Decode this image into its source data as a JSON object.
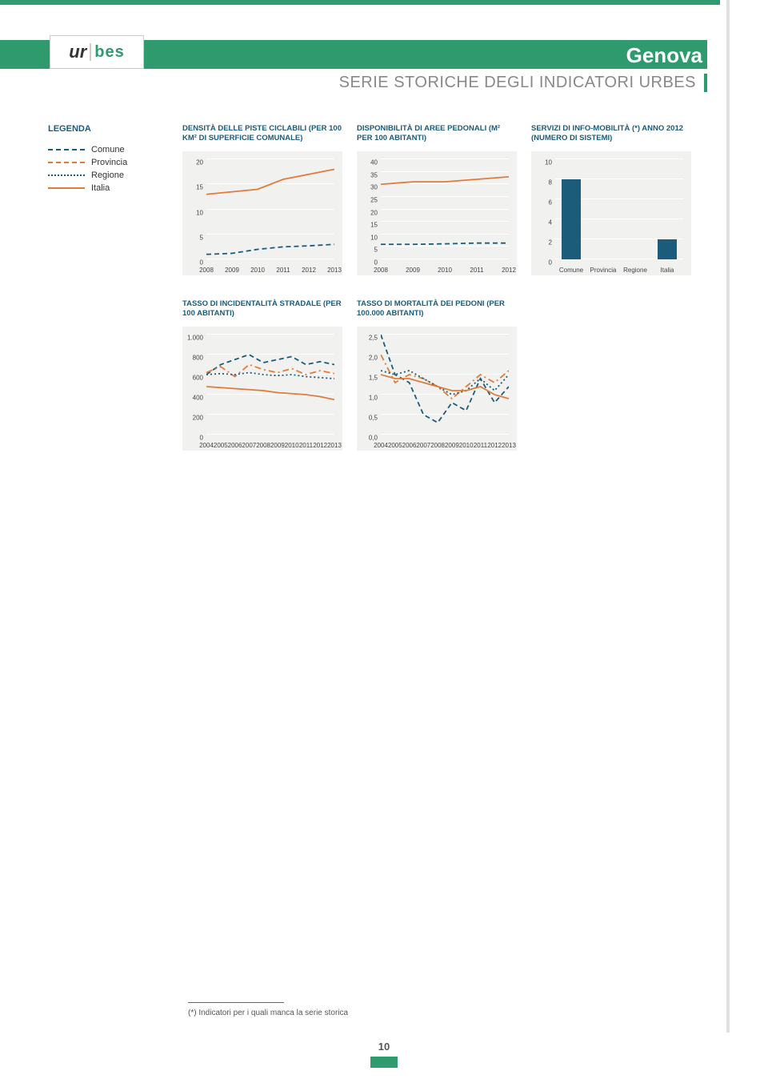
{
  "header": {
    "city": "Genova",
    "subtitle": "SERIE STORICHE DEGLI INDICATORI URBES",
    "logo_ur": "ur",
    "logo_bes": "bes"
  },
  "legend": {
    "title": "LEGENDA",
    "items": [
      {
        "label": "Comune",
        "color": "#1a5c7a",
        "dash": "dashed"
      },
      {
        "label": "Provincia",
        "color": "#e07b3c",
        "dash": "dashdot"
      },
      {
        "label": "Regione",
        "color": "#1a5c7a",
        "dash": "dotted"
      },
      {
        "label": "Italia",
        "color": "#e07b3c",
        "dash": "solid"
      }
    ]
  },
  "charts": {
    "c1": {
      "title": "DENSITÀ DELLE PISTE CICLABILI (PER 100 KM² DI SUPERFICIE COMUNALE)",
      "type": "line",
      "ymin": 0,
      "ymax": 20,
      "ystep": 5,
      "xlabels": [
        "2008",
        "2009",
        "2010",
        "2011",
        "2012",
        "2013"
      ],
      "series": [
        {
          "color": "#e07b3c",
          "dash": "solid",
          "vals": [
            13,
            13.5,
            14,
            16,
            17,
            18
          ]
        },
        {
          "color": "#1a5c7a",
          "dash": "dashed",
          "vals": [
            1,
            1.2,
            2,
            2.5,
            2.7,
            3
          ]
        }
      ]
    },
    "c2": {
      "title": "DISPONIBILITÀ DI AREE PEDONALI (M² PER 100 ABITANTI)",
      "type": "line",
      "ymin": 0,
      "ymax": 40,
      "ystep": 5,
      "xlabels": [
        "2008",
        "2009",
        "2010",
        "2011",
        "2012"
      ],
      "series": [
        {
          "color": "#e07b3c",
          "dash": "solid",
          "vals": [
            30,
            31,
            31,
            32,
            33
          ]
        },
        {
          "color": "#1a5c7a",
          "dash": "dashed",
          "vals": [
            6,
            6,
            6.2,
            6.5,
            6.5
          ]
        }
      ]
    },
    "c3": {
      "title": "SERVIZI DI INFO-MOBILITÀ (*) ANNO 2012 (NUMERO DI SISTEMI)",
      "type": "bar",
      "ymin": 0,
      "ymax": 10,
      "ystep": 2,
      "xlabels": [
        "Comune",
        "Provincia",
        "Regione",
        "Italia"
      ],
      "bar_color": "#1a5c7a",
      "vals": [
        8,
        null,
        null,
        2
      ]
    },
    "c4": {
      "title": "TASSO DI INCIDENTALITÀ STRADALE (PER 100 ABITANTI)",
      "type": "line",
      "ymin": 0,
      "ymax": 1000,
      "ystep": 200,
      "ylabels": [
        "0",
        "200",
        "400",
        "600",
        "800",
        "1.000"
      ],
      "xlabels": [
        "2004",
        "2005",
        "2006",
        "2007",
        "2008",
        "2009",
        "2010",
        "2011",
        "2012",
        "2013"
      ],
      "series": [
        {
          "color": "#1a5c7a",
          "dash": "dashed",
          "vals": [
            600,
            700,
            750,
            800,
            720,
            750,
            780,
            700,
            730,
            700
          ]
        },
        {
          "color": "#e07b3c",
          "dash": "dashdot",
          "vals": [
            620,
            680,
            580,
            700,
            650,
            620,
            660,
            600,
            640,
            610
          ]
        },
        {
          "color": "#1a5c7a",
          "dash": "dotted",
          "vals": [
            600,
            610,
            600,
            620,
            600,
            590,
            600,
            580,
            570,
            560
          ]
        },
        {
          "color": "#e07b3c",
          "dash": "solid",
          "vals": [
            480,
            470,
            460,
            450,
            440,
            420,
            410,
            400,
            380,
            350
          ]
        }
      ]
    },
    "c5": {
      "title": "TASSO DI MORTALITÀ DEI PEDONI (PER 100.000 ABITANTI)",
      "type": "line",
      "ymin": 0,
      "ymax": 2.5,
      "ystep": 0.5,
      "ylabels": [
        "0,0",
        "0,5",
        "1,0",
        "1,5",
        "2,0",
        "2,5"
      ],
      "xlabels": [
        "2004",
        "2005",
        "2006",
        "2007",
        "2008",
        "2009",
        "2010",
        "2011",
        "2012",
        "2013"
      ],
      "series": [
        {
          "color": "#1a5c7a",
          "dash": "dashed",
          "vals": [
            2.5,
            1.5,
            1.3,
            0.5,
            0.3,
            0.8,
            0.6,
            1.4,
            0.8,
            1.2
          ]
        },
        {
          "color": "#e07b3c",
          "dash": "dashdot",
          "vals": [
            2.0,
            1.3,
            1.5,
            1.4,
            1.2,
            0.9,
            1.2,
            1.5,
            1.3,
            1.6
          ]
        },
        {
          "color": "#1a5c7a",
          "dash": "dotted",
          "vals": [
            1.6,
            1.5,
            1.6,
            1.4,
            1.2,
            1.0,
            1.1,
            1.4,
            1.1,
            1.5
          ]
        },
        {
          "color": "#e07b3c",
          "dash": "solid",
          "vals": [
            1.5,
            1.4,
            1.4,
            1.3,
            1.2,
            1.1,
            1.1,
            1.2,
            1.0,
            0.9
          ]
        }
      ]
    }
  },
  "footnote": "(*) Indicatori per i quali manca la serie storica",
  "page_number": "10"
}
